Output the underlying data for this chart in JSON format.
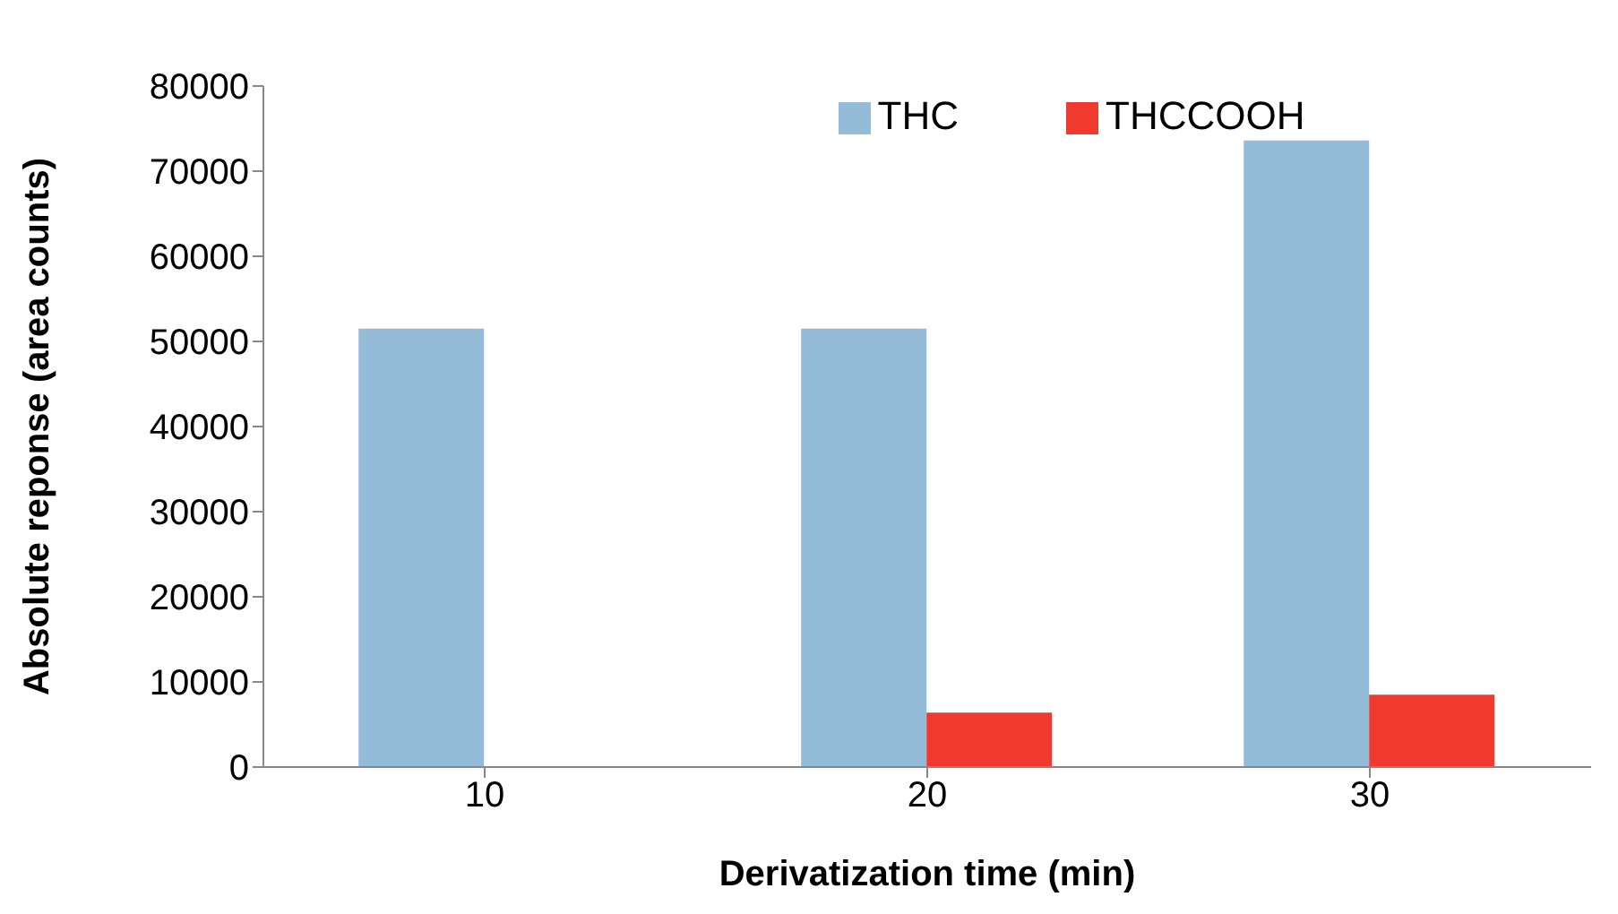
{
  "chart_data": {
    "type": "bar",
    "xlabel": "Derivatization time (min)",
    "ylabel": "Absolute reponse (area counts)",
    "categories": [
      "10",
      "20",
      "30"
    ],
    "series": [
      {
        "name": "THC",
        "color": "#94bcd9",
        "values": [
          51500,
          51500,
          73600
        ]
      },
      {
        "name": "THCCOOH",
        "color": "#f03a30",
        "values": [
          0,
          6400,
          8500
        ]
      }
    ],
    "ylim": [
      0,
      80000
    ],
    "yticks": [
      0,
      10000,
      20000,
      30000,
      40000,
      50000,
      60000,
      70000,
      80000
    ],
    "grid": false,
    "legend": "top"
  }
}
